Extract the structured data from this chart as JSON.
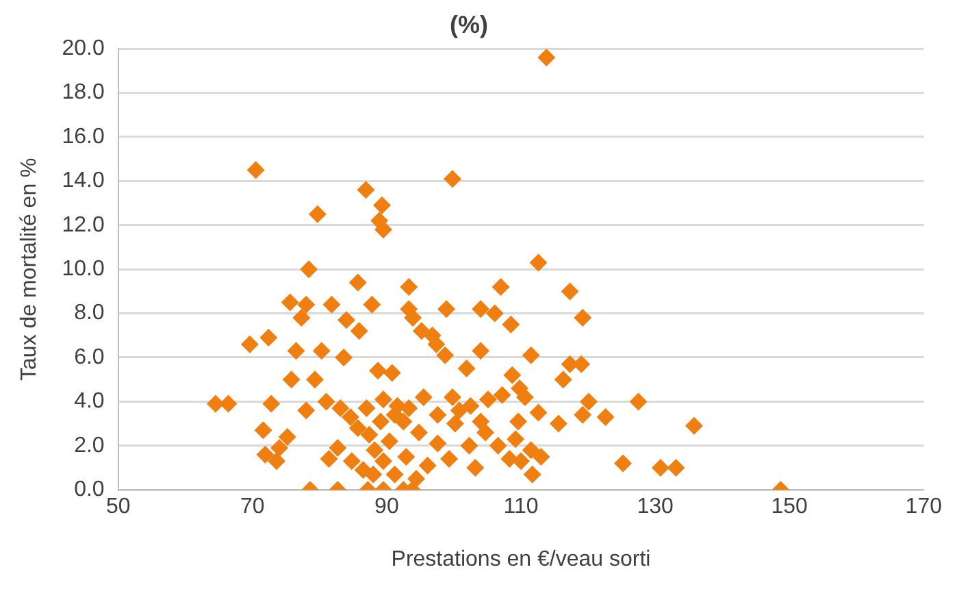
{
  "chart_data": {
    "type": "scatter",
    "title": "(%)",
    "xlabel": "Prestations en €/veau sorti",
    "ylabel": "Taux de mortalité en %",
    "marker": "diamond",
    "grid": "y",
    "legend": false,
    "xlim": [
      50,
      170
    ],
    "xticks": [
      50,
      70,
      90,
      110,
      130,
      150,
      170
    ],
    "ylim": [
      0,
      20
    ],
    "yticks": [
      {
        "value": 0,
        "label": "0.0"
      },
      {
        "value": 2,
        "label": "2.0"
      },
      {
        "value": 4,
        "label": "4.0"
      },
      {
        "value": 6,
        "label": "6.0"
      },
      {
        "value": 8,
        "label": "8.0"
      },
      {
        "value": 10,
        "label": "10.0"
      },
      {
        "value": 12,
        "label": "12.0"
      },
      {
        "value": 14,
        "label": "14.0"
      },
      {
        "value": 16,
        "label": "16.0"
      },
      {
        "value": 18,
        "label": "18.0"
      },
      {
        "value": 20,
        "label": "20.0"
      }
    ],
    "series": [
      {
        "color": "#ef7f10",
        "x": [
          113.8,
          70.5,
          99.8,
          86.9,
          89.3,
          88.9,
          89.5,
          79.7,
          78.4,
          112.6,
          117.3,
          93.3,
          107,
          75.6,
          78,
          85.7,
          87.8,
          81.8,
          98.9,
          93.3,
          104,
          106.1,
          119.2,
          77.3,
          84,
          85.9,
          93.9,
          95.2,
          96.8,
          108.5,
          69.6,
          72.4,
          76.5,
          80.3,
          83.6,
          88.7,
          97.4,
          98.7,
          104,
          111.5,
          117.3,
          119,
          116.3,
          75.8,
          79.3,
          90.8,
          101.9,
          108.7,
          109.8,
          72.8,
          64.5,
          66.4,
          78,
          81,
          83.1,
          84.6,
          89.5,
          91.6,
          95.5,
          99.8,
          102.5,
          105.1,
          107.2,
          110.6,
          120.1,
          127.5,
          119.2,
          122.6,
          112.6,
          115.6,
          109.6,
          71.6,
          75.2,
          82.7,
          85.7,
          87.4,
          88.2,
          90.4,
          92.5,
          94.8,
          97.6,
          100.2,
          102.3,
          104.7,
          106.6,
          109.2,
          111.5,
          71.9,
          73.6,
          74,
          81.4,
          86.5,
          89.5,
          92.9,
          96.1,
          99.3,
          103.2,
          108.3,
          110,
          113,
          111.7,
          125.2,
          130.8,
          133.1,
          135.8,
          82.7,
          78.6,
          87.2,
          89.5,
          93.8,
          92.5,
          148.7,
          89.1,
          91.2,
          93.3,
          97.6,
          100.8,
          104,
          87,
          88,
          91.2,
          94.4,
          84.8
        ],
        "values": [
          19.6,
          14.5,
          14.1,
          13.6,
          12.9,
          12.2,
          11.8,
          12.5,
          10.0,
          10.3,
          9.0,
          9.2,
          9.2,
          8.5,
          8.4,
          9.4,
          8.4,
          8.4,
          8.2,
          8.2,
          8.2,
          8.0,
          7.8,
          7.8,
          7.7,
          7.2,
          7.8,
          7.2,
          7.0,
          7.5,
          6.6,
          6.9,
          6.3,
          6.3,
          6.0,
          5.4,
          6.6,
          6.1,
          6.3,
          6.1,
          5.7,
          5.7,
          5.0,
          5.0,
          5.0,
          5.3,
          5.5,
          5.2,
          4.6,
          3.9,
          3.9,
          3.9,
          3.6,
          4.0,
          3.7,
          3.3,
          4.1,
          3.8,
          4.2,
          4.2,
          3.8,
          4.1,
          4.3,
          4.2,
          4.0,
          4.0,
          3.4,
          3.3,
          3.5,
          3.0,
          3.1,
          2.7,
          2.4,
          1.9,
          2.8,
          2.5,
          1.8,
          2.2,
          3.1,
          2.6,
          2.1,
          3.0,
          2.0,
          2.6,
          2.0,
          2.3,
          1.8,
          1.6,
          1.3,
          1.9,
          1.4,
          0.9,
          1.3,
          1.5,
          1.1,
          1.4,
          1.0,
          1.4,
          1.3,
          1.5,
          0.7,
          1.2,
          1.0,
          1.0,
          2.9,
          0,
          0,
          0,
          0,
          0,
          0,
          0,
          3.1,
          3.4,
          3.7,
          3.4,
          3.6,
          3.1,
          3.7,
          0.7,
          0.7,
          0.5,
          1.3
        ]
      }
    ]
  }
}
